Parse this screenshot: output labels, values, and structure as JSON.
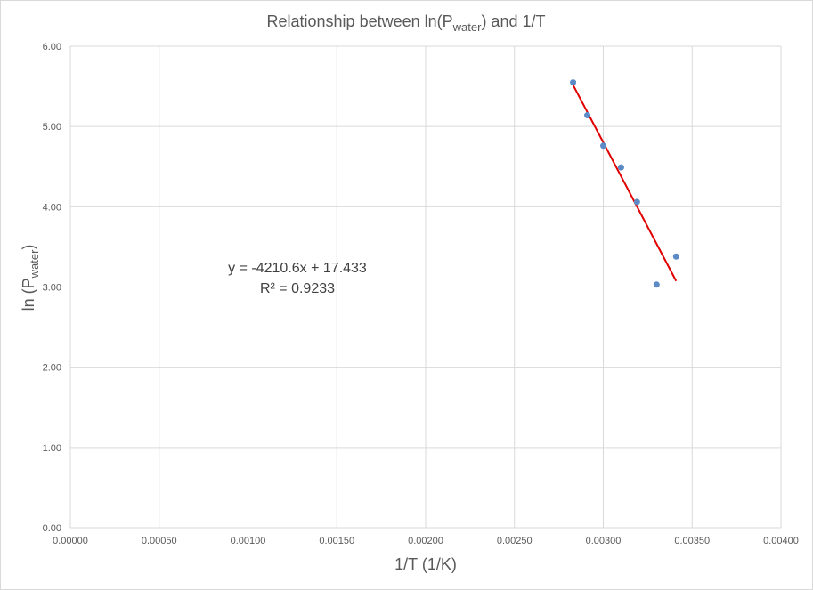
{
  "chart_data": {
    "type": "scatter",
    "title": {
      "main": "Relationship between ln(P",
      "subscript": "water",
      "suffix": ") and 1/T"
    },
    "xlabel": "1/T (1/K)",
    "ylabel": {
      "main": "ln (P",
      "subscript": "water",
      "suffix": ")"
    },
    "xlim": [
      0,
      0.004
    ],
    "ylim": [
      0,
      6
    ],
    "x_ticks": [
      "0.00000",
      "0.00050",
      "0.00100",
      "0.00150",
      "0.00200",
      "0.00250",
      "0.00300",
      "0.00350",
      "0.00400"
    ],
    "y_ticks": [
      "0.00",
      "1.00",
      "2.00",
      "3.00",
      "4.00",
      "5.00",
      "6.00"
    ],
    "grid": true,
    "series": [
      {
        "points": [
          {
            "x": 0.00283,
            "y": 5.55
          },
          {
            "x": 0.00291,
            "y": 5.14
          },
          {
            "x": 0.003,
            "y": 4.76
          },
          {
            "x": 0.0031,
            "y": 4.49
          },
          {
            "x": 0.00319,
            "y": 4.06
          },
          {
            "x": 0.0033,
            "y": 3.03
          },
          {
            "x": 0.00341,
            "y": 3.38
          }
        ],
        "color": "#5b8ac6"
      }
    ],
    "trendline": {
      "slope": -4210.6,
      "intercept": 17.433,
      "x_range": [
        0.00283,
        0.00341
      ],
      "color": "#e00000",
      "equation": "y = -4210.6x + 17.433",
      "r_squared": "R² = 0.9233"
    }
  }
}
